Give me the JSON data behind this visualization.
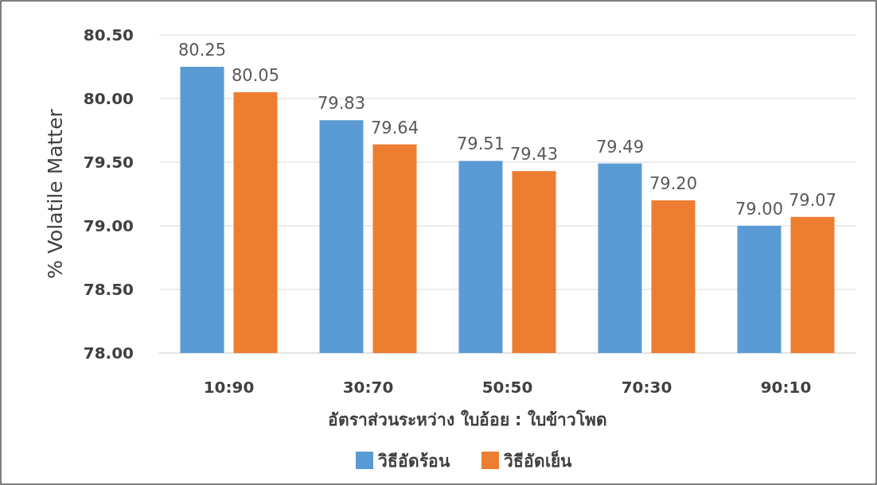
{
  "chart_data": {
    "type": "bar",
    "xlabel": "อัตราส่วนระหว่าง ใบอ้อย : ใบข้าวโพด",
    "ylabel": "% Volatile Matter",
    "categories": [
      "10:90",
      "30:70",
      "50:50",
      "70:30",
      "90:10"
    ],
    "series": [
      {
        "name": "วิธีอัดร้อน",
        "color": "#5b9bd5",
        "values": [
          80.25,
          79.83,
          79.51,
          79.49,
          79.0
        ],
        "value_labels": [
          "80.25",
          "79.83",
          "79.51",
          "79.49",
          "79.00"
        ]
      },
      {
        "name": "วิธีอัดเย็น",
        "color": "#ed7d31",
        "values": [
          80.05,
          79.64,
          79.43,
          79.2,
          79.07
        ],
        "value_labels": [
          "80.05",
          "79.64",
          "79.43",
          "79.20",
          "79.07"
        ]
      }
    ],
    "ylim": [
      78,
      80.5
    ],
    "yticks": [
      {
        "value": 78,
        "label": "78.00"
      },
      {
        "value": 78.5,
        "label": "78.50"
      },
      {
        "value": 79,
        "label": "79.00"
      },
      {
        "value": 79.5,
        "label": "79.50"
      },
      {
        "value": 80,
        "label": "80.00"
      },
      {
        "value": 80.5,
        "label": "80.50"
      }
    ],
    "grid": "y",
    "legend": "bottom"
  }
}
